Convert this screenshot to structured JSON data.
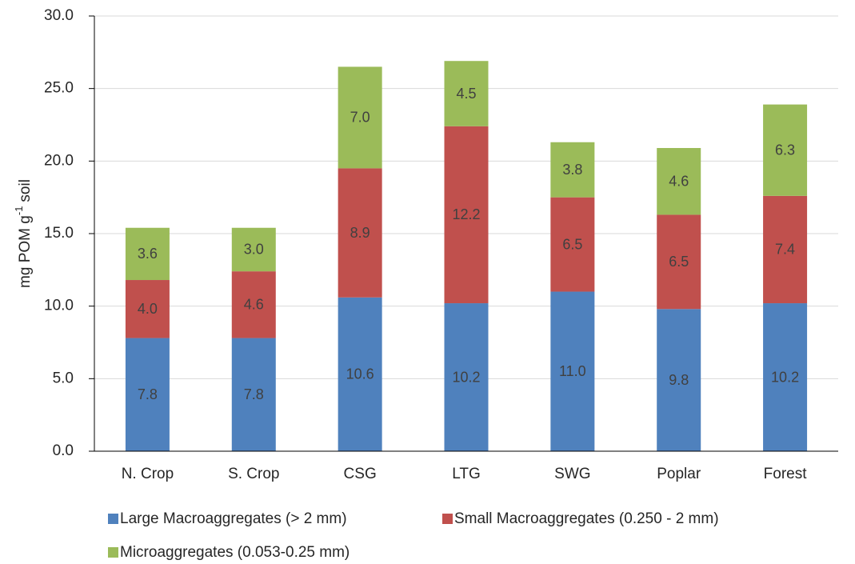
{
  "chart_data": {
    "type": "stacked_bar",
    "y_label": {
      "main": "mg POM g",
      "sup": "-1",
      "end": "soil"
    },
    "categories": [
      "N. Crop",
      "S. Crop",
      "CSG",
      "LTG",
      "SWG",
      "Poplar",
      "Forest"
    ],
    "series": [
      {
        "name": "Large Macroaggregates (> 2 mm)",
        "color": "#4f81bd",
        "values": [
          7.8,
          7.8,
          10.6,
          10.2,
          11.0,
          9.8,
          10.2
        ],
        "value_labels": [
          "7.8",
          "7.8",
          "10.6",
          "10.2",
          "11.0",
          "9.8",
          "10.2"
        ]
      },
      {
        "name": "Small Macroaggregates (0.250 - 2 mm)",
        "color": "#c0504d",
        "values": [
          4.0,
          4.6,
          8.9,
          12.2,
          6.5,
          6.5,
          7.4
        ],
        "value_labels": [
          "4.0",
          "4.6",
          "8.9",
          "12.2",
          "6.5",
          "6.5",
          "7.4"
        ]
      },
      {
        "name": "Microaggregates (0.053-0.25 mm)",
        "color": "#9bbb59",
        "values": [
          3.6,
          3.0,
          7.0,
          4.5,
          3.8,
          4.6,
          6.3
        ],
        "value_labels": [
          "3.6",
          "3.0",
          "7.0",
          "4.5",
          "3.8",
          "4.6",
          "6.3"
        ]
      }
    ],
    "ylim": [
      0,
      30
    ],
    "yticks": [
      {
        "value": 0,
        "label": "0.0"
      },
      {
        "value": 5,
        "label": "5.0"
      },
      {
        "value": 10,
        "label": "10.0"
      },
      {
        "value": 15,
        "label": "15.0"
      },
      {
        "value": 20,
        "label": "20.0"
      },
      {
        "value": 25,
        "label": "25.0"
      },
      {
        "value": 30,
        "label": "30.0"
      }
    ],
    "grid": true,
    "legend": "bottom"
  }
}
